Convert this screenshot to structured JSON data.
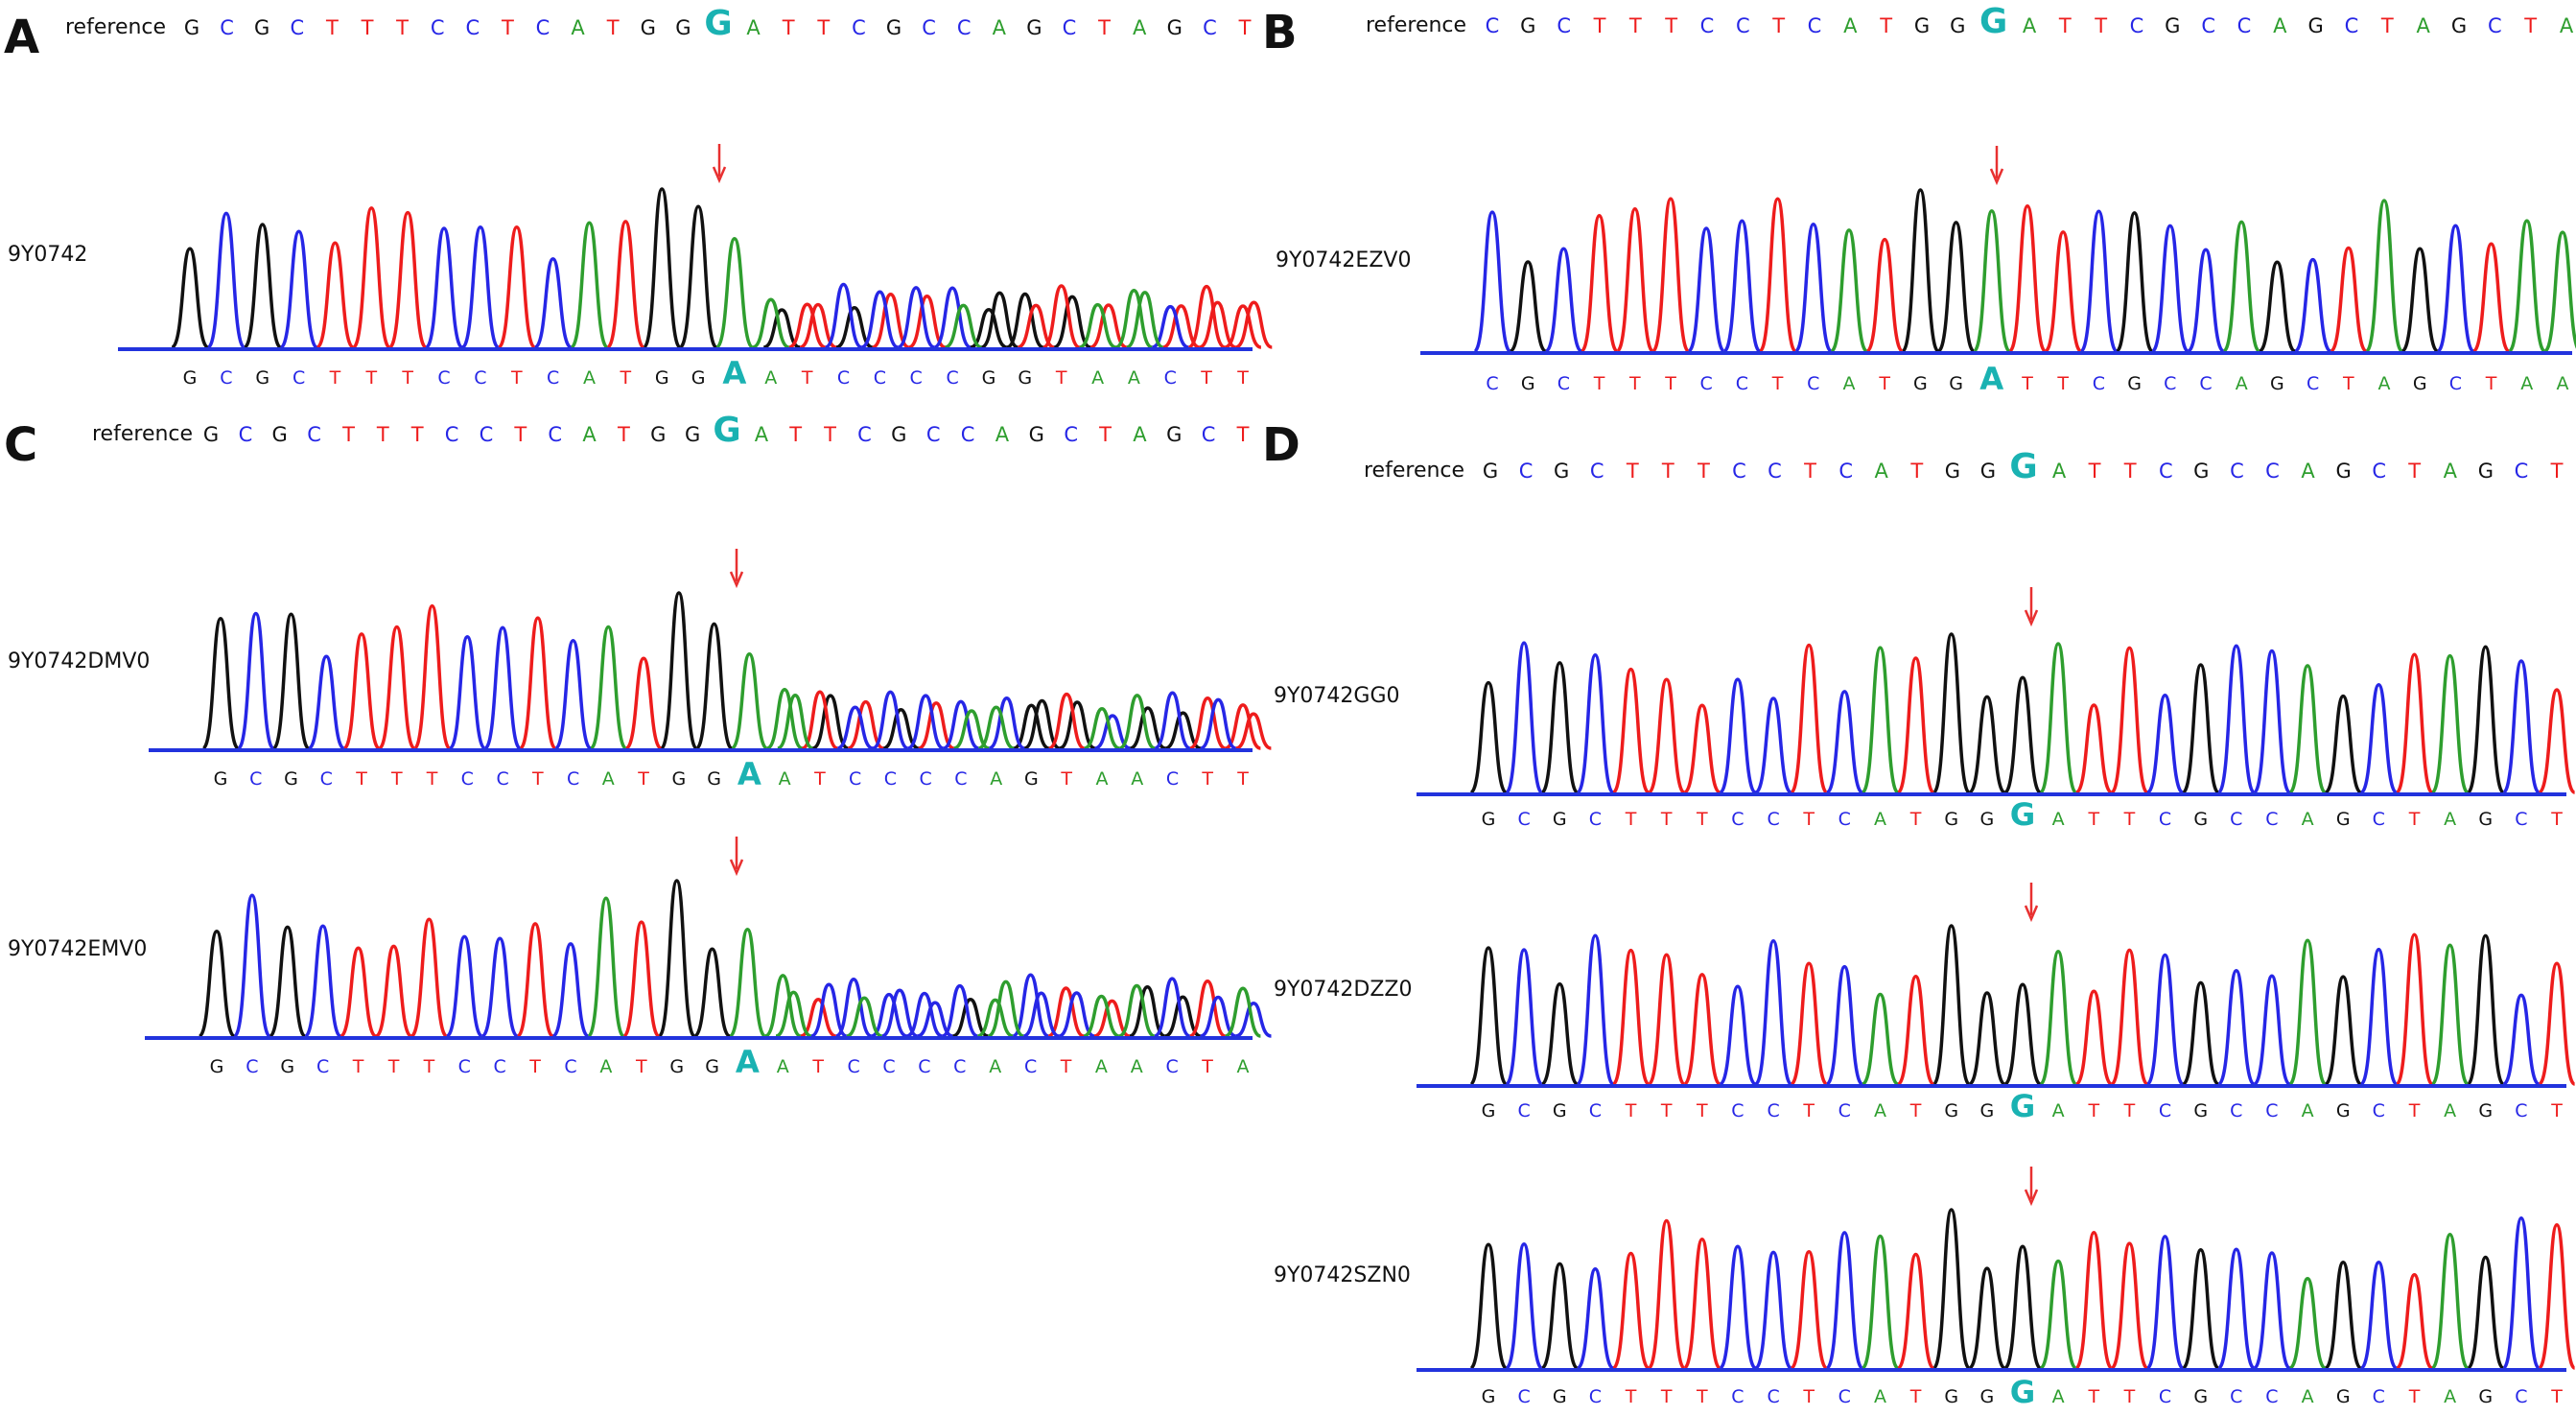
{
  "colors": {
    "A": "#2e9e2e",
    "C": "#2626e6",
    "G": "#111111",
    "T": "#ee1c1c",
    "highlight": "#1ab2b2",
    "arrow": "#e83030",
    "baseline": "#2233dd"
  },
  "chart_data": [
    {
      "type": "chromatogram",
      "panel": "A",
      "reference_label": "reference",
      "reference": "GCGCTTTCCTCATGGGATTCGCCAGCTAGCT",
      "highlight_index": 15,
      "tracks": [
        {
          "name": "9Y0742",
          "sequence": "GCGCTTTCCTCATGGAATCCCCGGTAACTT",
          "heterozygous": true
        }
      ]
    },
    {
      "type": "chromatogram",
      "panel": "B",
      "reference_label": "reference",
      "reference": "CGCTTTCCTCATGGGATTCGCCAGCTAGCTA",
      "highlight_index": 14,
      "tracks": [
        {
          "name": "9Y0742EZV0",
          "sequence": "CGCTTTCCTCATGGATTCGCCAGCTAGCTAA",
          "heterozygous": false
        }
      ]
    },
    {
      "type": "chromatogram",
      "panel": "C",
      "reference_label": "reference",
      "reference": "GCGCTTTCCTCATGGGATTCGCCAGCTAGCT",
      "highlight_index": 15,
      "tracks": [
        {
          "name": "9Y0742DMV0",
          "sequence": "GCGCTTTCCTCATGGAATCCCCAGTAACTT",
          "heterozygous": true
        },
        {
          "name": "9Y0742EMV0",
          "sequence": "GCGCTTTCCTCATGGAATCCCCACTAACTA",
          "heterozygous": true
        }
      ]
    },
    {
      "type": "chromatogram",
      "panel": "D",
      "reference_label": "reference",
      "reference": "GCGCTTTCCTCATGGGATTCGCCAGCTAGCT",
      "highlight_index": 15,
      "tracks": [
        {
          "name": "9Y0742GG0",
          "sequence": "GCGCTTTCCTCATGGGATTCGCCAGCTAGCT",
          "heterozygous": false
        },
        {
          "name": "9Y0742DZZ0",
          "sequence": "GCGCTTTCCTCATGGGATTCGCCAGCTAGCT",
          "heterozygous": false
        },
        {
          "name": "9Y0742SZN0",
          "sequence": "GCGCTTTCCTCATGGGATTCGCCAGCTAGCT",
          "heterozygous": false
        }
      ]
    }
  ]
}
